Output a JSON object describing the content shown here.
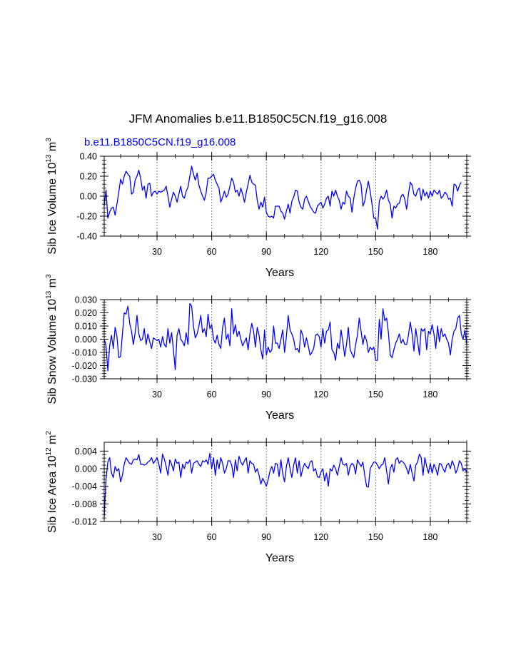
{
  "colors": {
    "series": "#0000ff",
    "axis": "#000000",
    "grid": "#888888",
    "subtitle": "#0000ff"
  },
  "figure": {
    "title": "JFM Anomalies b.e11.B1850C5CN.f19_g16.008",
    "subtitle": "b.e11.B1850C5CN.f19_g16.008"
  },
  "chart_data": [
    {
      "type": "line",
      "series_name": "b.e11.B1850C5CN.f19_g16.008",
      "ylabel_main": "Sib Ice Volume 10",
      "ylabel_exp": "13",
      "ylabel_unit": " m",
      "ylabel_unit_exp": "3",
      "xlabel": "Years",
      "xlim": [
        1,
        200
      ],
      "ylim": [
        -0.4,
        0.4
      ],
      "yticks": [
        -0.4,
        -0.2,
        0.0,
        0.2,
        0.4
      ],
      "ytick_labels": [
        "-0.40",
        "-0.20",
        "0.00",
        "0.20",
        "0.40"
      ],
      "xticks": [
        30,
        60,
        90,
        120,
        150,
        180
      ],
      "xtick_labels": [
        "30",
        "60",
        "90",
        "120",
        "150",
        "180"
      ],
      "vgrid": [
        30,
        60,
        90,
        120,
        150,
        180
      ],
      "x_start": 1,
      "values": [
        -0.1,
        0.06,
        -0.22,
        -0.16,
        -0.12,
        -0.11,
        -0.19,
        -0.08,
        0.04,
        0.17,
        0.12,
        0.2,
        0.25,
        0.22,
        0.2,
        0.02,
        0.04,
        0.16,
        0.2,
        0.26,
        0.18,
        0.06,
        0.1,
        -0.02,
        0.12,
        0.13,
        0.0,
        0.04,
        0.05,
        0.02,
        0.05,
        0.04,
        0.05,
        0.06,
        0.1,
        0.0,
        -0.11,
        -0.03,
        0.04,
        0.0,
        -0.06,
        0.02,
        0.1,
        0.0,
        -0.02,
        0.05,
        0.09,
        0.2,
        0.3,
        0.22,
        0.16,
        0.23,
        0.11,
        0.05,
        0.0,
        -0.04,
        0.04,
        0.18,
        0.18,
        0.2,
        0.22,
        0.16,
        0.12,
        0.08,
        -0.06,
        -0.01,
        0.05,
        -0.01,
        0.02,
        0.1,
        0.18,
        0.14,
        0.04,
        0.06,
        0.0,
        0.08,
        0.02,
        -0.06,
        0.04,
        0.12,
        0.21,
        0.14,
        0.12,
        0.11,
        -0.04,
        -0.13,
        -0.06,
        -0.11,
        -0.01,
        -0.16,
        -0.2,
        -0.21,
        -0.2,
        -0.22,
        -0.1,
        -0.1,
        -0.1,
        -0.15,
        -0.17,
        -0.23,
        -0.15,
        -0.08,
        -0.17,
        -0.05,
        -0.01,
        0.06,
        0.05,
        -0.06,
        -0.11,
        -0.13,
        -0.03,
        0.0,
        -0.05,
        -0.1,
        -0.13,
        -0.16,
        -0.17,
        -0.1,
        -0.08,
        -0.06,
        -0.12,
        -0.08,
        -0.02,
        0.0,
        -0.1,
        0.05,
        0.0,
        0.06,
        0.0,
        -0.04,
        -0.13,
        -0.06,
        -0.08,
        0.05,
        0.0,
        -0.02,
        -0.16,
        -0.02,
        0.08,
        0.15,
        0.16,
        0.12,
        -0.1,
        -0.05,
        0.06,
        0.15,
        0.05,
        -0.08,
        -0.22,
        -0.22,
        -0.33,
        -0.05,
        0.0,
        -0.03,
        0.0,
        0.06,
        -0.04,
        -0.08,
        -0.22,
        -0.1,
        -0.12,
        -0.08,
        -0.07,
        0.0,
        0.02,
        -0.03,
        -0.13,
        0.02,
        0.14,
        0.11,
        0.02,
        0.0,
        0.06,
        0.08,
        -0.04,
        0.07,
        0.0,
        0.04,
        -0.02,
        0.05,
        0.0,
        0.06,
        0.04,
        0.02,
        0.06,
        -0.02,
        0.0,
        0.04,
        0.02,
        -0.03,
        -0.02,
        -0.1,
        0.12,
        0.11,
        0.05,
        0.11,
        0.14
      ]
    },
    {
      "type": "line",
      "series_name": "b.e11.B1850C5CN.f19_g16.008",
      "ylabel_main": "Sib Snow Volume 10",
      "ylabel_exp": "13",
      "ylabel_unit": " m",
      "ylabel_unit_exp": "3",
      "xlabel": "Years",
      "xlim": [
        1,
        200
      ],
      "ylim": [
        -0.03,
        0.03
      ],
      "yticks": [
        -0.03,
        -0.02,
        -0.01,
        0.0,
        0.01,
        0.02,
        0.03
      ],
      "ytick_labels": [
        "-0.030",
        "-0.020",
        "-0.010",
        "0.000",
        "0.010",
        "0.020",
        "0.030"
      ],
      "xticks": [
        30,
        60,
        90,
        120,
        150,
        180
      ],
      "xtick_labels": [
        "30",
        "60",
        "90",
        "120",
        "150",
        "180"
      ],
      "vgrid": [
        30,
        60,
        90,
        120,
        150,
        180
      ],
      "x_start": 1,
      "values": [
        0.0,
        -0.005,
        -0.024,
        -0.005,
        0.003,
        -0.007,
        0.009,
        0.002,
        -0.014,
        -0.013,
        0.004,
        0.02,
        0.019,
        0.025,
        0.012,
        0.006,
        -0.004,
        0.005,
        0.018,
        0.004,
        -0.001,
        0.0,
        0.008,
        -0.004,
        0.004,
        -0.002,
        -0.007,
        0.001,
        0.0,
        -0.001,
        0.0,
        -0.006,
        0.002,
        -0.004,
        -0.006,
        0.008,
        -0.003,
        0.005,
        -0.008,
        -0.023,
        0.003,
        0.008,
        0.0,
        -0.002,
        -0.005,
        0.005,
        -0.004,
        0.027,
        0.025,
        0.01,
        0.001,
        0.004,
        0.01,
        0.018,
        0.005,
        0.008,
        0.002,
        0.019,
        0.008,
        0.011,
        0.0,
        -0.003,
        0.003,
        -0.004,
        -0.007,
        0.009,
        0.016,
        0.0,
        0.004,
        -0.005,
        0.023,
        0.004,
        0.011,
        0.002,
        0.006,
        0.0,
        -0.005,
        -0.002,
        0.001,
        -0.008,
        0.004,
        0.012,
        0.006,
        -0.006,
        0.009,
        0.003,
        -0.008,
        -0.015,
        0.007,
        -0.012,
        -0.006,
        -0.01,
        -0.008,
        0.01,
        -0.003,
        -0.003,
        -0.007,
        0.0,
        0.007,
        -0.01,
        0.002,
        0.018,
        0.007,
        0.004,
        0.0,
        -0.008,
        -0.007,
        -0.01,
        0.007,
        0.003,
        -0.006,
        0.001,
        -0.005,
        -0.012,
        -0.01,
        -0.007,
        0.003,
        0.004,
        0.002,
        -0.006,
        0.008,
        -0.003,
        0.006,
        0.007,
        0.013,
        -0.008,
        -0.01,
        -0.016,
        -0.003,
        -0.007,
        0.007,
        -0.002,
        -0.013,
        -0.004,
        0.009,
        -0.008,
        -0.011,
        -0.014,
        -0.004,
        0.003,
        0.016,
        0.006,
        -0.004,
        0.003,
        -0.001,
        -0.01,
        -0.006,
        -0.008,
        -0.006,
        -0.016,
        -0.016,
        0.015,
        0.0,
        0.023,
        0.014,
        0.016,
        0.005,
        -0.012,
        -0.014,
        -0.008,
        -0.003,
        0.0,
        0.004,
        -0.003,
        0.0,
        -0.004,
        -0.004,
        0.003,
        0.013,
        0.004,
        -0.009,
        0.008,
        -0.001,
        -0.012,
        0.008,
        0.006,
        0.008,
        -0.008,
        0.006,
        0.004,
        0.011,
        0.004,
        -0.007,
        0.01,
        -0.002,
        0.008,
        0.002,
        0.004,
        0.0,
        -0.003,
        -0.012,
        0.0,
        0.006,
        0.008,
        0.016,
        0.018,
        0.004,
        0.0,
        0.007,
        -0.004
      ]
    },
    {
      "type": "line",
      "series_name": "b.e11.B1850C5CN.f19_g16.008",
      "ylabel_main": "Sib Ice Area 10",
      "ylabel_exp": "12",
      "ylabel_unit": " m",
      "ylabel_unit_exp": "2",
      "xlabel": "Years",
      "xlim": [
        1,
        200
      ],
      "ylim": [
        -0.012,
        0.006
      ],
      "yticks": [
        -0.012,
        -0.008,
        -0.004,
        0.0,
        0.004
      ],
      "ytick_labels": [
        "-0.012",
        "-0.008",
        "-0.004",
        "0.000",
        "0.004"
      ],
      "xticks": [
        30,
        60,
        90,
        120,
        150,
        180
      ],
      "xtick_labels": [
        "30",
        "60",
        "90",
        "120",
        "150",
        "180"
      ],
      "vgrid": [
        30,
        60,
        90,
        120,
        150,
        180
      ],
      "x_start": 1,
      "values": [
        -0.011,
        -0.0025,
        0.0015,
        0.0025,
        -0.001,
        -0.002,
        0.0005,
        -0.0005,
        0.0,
        -0.003,
        -0.0015,
        0.001,
        0.0025,
        0.0018,
        0.0012,
        0.001,
        0.002,
        0.0022,
        0.002,
        0.0032,
        0.001,
        0.001,
        0.0008,
        0.001,
        0.0015,
        0.0018,
        0.0025,
        0.0012,
        0.0018,
        0.0025,
        0.001,
        -0.001,
        0.0033,
        0.0022,
        0.0005,
        -0.0015,
        0.002,
        0.001,
        -0.0005,
        0.0022,
        0.0012,
        0.0015,
        -0.002,
        0.001,
        0.0,
        0.0015,
        0.0012,
        0.002,
        -0.001,
        0.0012,
        0.0015,
        0.0018,
        0.001,
        0.0005,
        0.0018,
        0.0015,
        0.002,
        0.001,
        0.0035,
        0.0,
        0.0025,
        -0.0015,
        0.002,
        0.0,
        0.0025,
        0.0012,
        -0.001,
        0.0,
        0.0018,
        0.0018,
        0.0008,
        -0.002,
        0.002,
        -0.0005,
        0.0028,
        0.0015,
        0.0008,
        0.0018,
        0.0025,
        -0.001,
        0.0018,
        0.0012,
        0.001,
        -0.0008,
        0.0,
        -0.0015,
        -0.0035,
        -0.0022,
        -0.003,
        -0.004,
        -0.0025,
        -0.0005,
        0.0005,
        -0.001,
        0.0012,
        0.001,
        -0.0018,
        0.002,
        -0.0012,
        -0.003,
        0.0005,
        0.0025,
        0.0,
        -0.002,
        0.0008,
        0.0025,
        -0.001,
        0.0018,
        -0.0018,
        0.0,
        0.0012,
        0.0005,
        0.0,
        0.0015,
        0.0018,
        -0.0005,
        0.0,
        -0.0018,
        -0.002,
        -0.0008,
        0.0,
        -0.0028,
        -0.001,
        -0.004,
        0.0,
        -0.0005,
        0.0008,
        0.0,
        -0.0015,
        0.0005,
        0.0025,
        0.001,
        0.0008,
        0.0012,
        -0.0015,
        0.0005,
        0.0012,
        0.0008,
        -0.0012,
        0.002,
        0.0012,
        0.0005,
        0.0015,
        -0.0015,
        -0.004,
        -0.0042,
        0.0,
        0.0008,
        0.0015,
        0.0015,
        0.0008,
        0.0,
        0.0008,
        0.001,
        0.0025,
        -0.0005,
        -0.0035,
        0.0,
        0.001,
        -0.0008,
        0.002,
        0.0025,
        0.0012,
        0.0018,
        0.0015,
        0.001,
        0.0,
        -0.0012,
        0.001,
        -0.001,
        -0.0028,
        0.0008,
        0.0015,
        0.0033,
        0.0025,
        -0.0015,
        0.0025,
        0.0005,
        -0.001,
        0.0012,
        -0.001,
        0.001,
        0.0,
        -0.0015,
        0.0012,
        0.001,
        0.0,
        -0.0008,
        0.0008,
        0.0012,
        0.0,
        0.0018,
        0.0008,
        -0.001,
        0.0,
        0.0018,
        0.0012,
        -0.0005,
        0.0,
        -0.0008
      ]
    }
  ]
}
